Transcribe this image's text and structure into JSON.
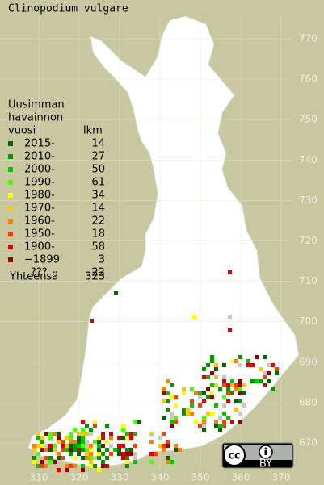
{
  "title": "Clinopodium vulgare",
  "legend": {
    "heading": [
      "Uusimman",
      "havainnon",
      "vuosi"
    ],
    "count_heading": "lkm",
    "items": [
      {
        "label": "2015-",
        "count": 14,
        "color": "#006400"
      },
      {
        "label": "2010-",
        "count": 27,
        "color": "#009a00"
      },
      {
        "label": "2000-",
        "count": 50,
        "color": "#00c800"
      },
      {
        "label": "1990-",
        "count": 61,
        "color": "#4cff00"
      },
      {
        "label": "1980-",
        "count": 34,
        "color": "#ffff00"
      },
      {
        "label": "1970-",
        "count": 14,
        "color": "#ffc800"
      },
      {
        "label": "1960-",
        "count": 22,
        "color": "#ff8000"
      },
      {
        "label": "1950-",
        "count": 18,
        "color": "#ff3c00"
      },
      {
        "label": "1900-",
        "count": 58,
        "color": "#dc0000"
      },
      {
        "label": "−1899",
        "count": 3,
        "color": "#960000"
      },
      {
        "label": "???",
        "count": 22,
        "color": "#c8c8c8"
      }
    ],
    "total_label": "Yhteensä",
    "total": 323
  },
  "y_ticks": [
    770,
    760,
    750,
    740,
    730,
    720,
    710,
    700,
    690,
    680,
    670
  ],
  "x_ticks": [
    310,
    320,
    330,
    340,
    350,
    360,
    370
  ],
  "badge": {
    "logo": "cc",
    "label": "BY"
  }
}
